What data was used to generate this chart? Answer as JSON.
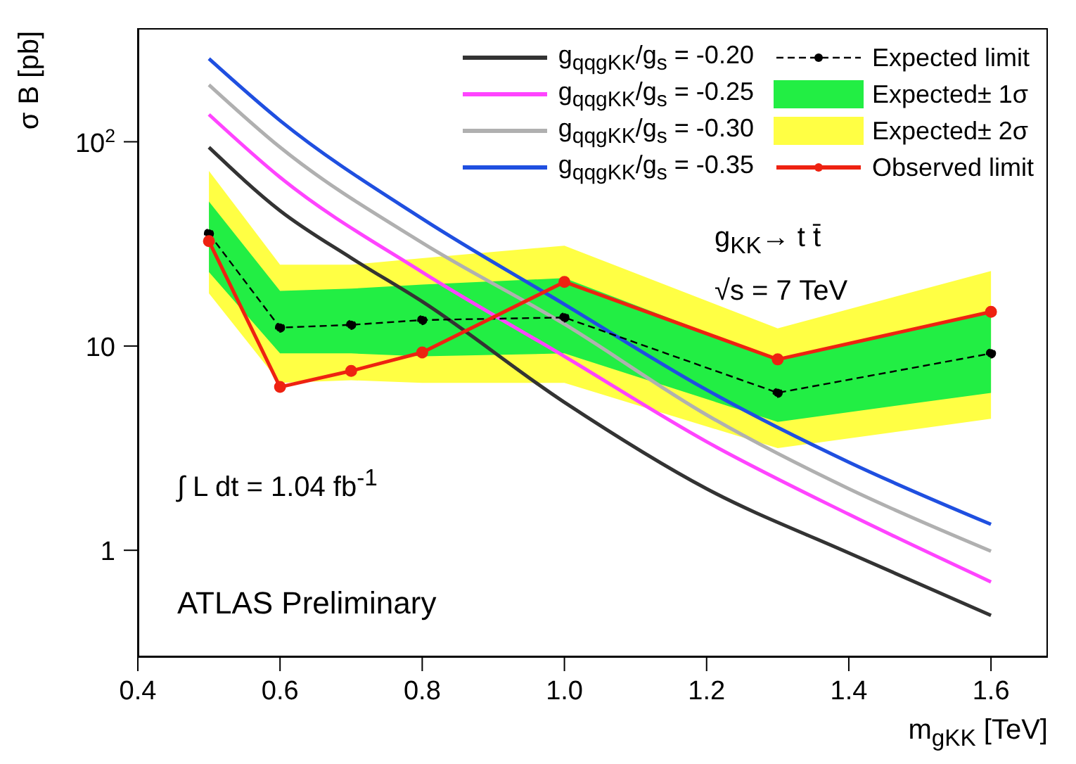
{
  "chart_data": {
    "type": "line",
    "xlabel": "m$_{gKK}$ [TeV]",
    "ylabel": "σ B [pb]",
    "log": "y",
    "xlim": [
      0.4,
      1.68
    ],
    "ylim": [
      0.3,
      360
    ],
    "xticks": [
      0.4,
      0.6,
      0.8,
      {
        "value": 1,
        "label": "1.0"
      },
      1.2,
      1.4,
      1.6
    ],
    "yticks": [
      1,
      10,
      {
        "value": 100,
        "label": "10$^{2}$"
      }
    ],
    "grid": false,
    "legend": "top right",
    "series": [
      {
        "name": "g$_{qqgKK}$/g$_{s}$ = -0.20",
        "type": "line",
        "color": "#333333",
        "marker": "none",
        "line_style": "solid",
        "x": [
          0.5,
          0.6,
          0.7,
          0.8,
          1.0,
          1.2,
          1.4,
          1.6
        ],
        "values": [
          94,
          46,
          27,
          16.5,
          5.3,
          2.0,
          0.97,
          0.48
        ]
      },
      {
        "name": "g$_{qqgKK}$/g$_{s}$ = -0.25",
        "type": "line",
        "color": "#ff44ff",
        "marker": "none",
        "line_style": "solid",
        "x": [
          0.5,
          0.6,
          0.8,
          1.0,
          1.2,
          1.4,
          1.6
        ],
        "values": [
          136,
          67,
          23,
          8.9,
          3.4,
          1.5,
          0.7
        ]
      },
      {
        "name": "g$_{qqgKK}$/g$_{s}$ = -0.30",
        "type": "line",
        "color": "#b0b0b0",
        "marker": "none",
        "line_style": "solid",
        "x": [
          0.5,
          0.6,
          0.8,
          1.0,
          1.2,
          1.4,
          1.6
        ],
        "values": [
          190,
          94,
          32,
          12.8,
          4.6,
          2.0,
          0.99
        ]
      },
      {
        "name": "g$_{qqgKK}$/g$_{s}$ = -0.35",
        "type": "line",
        "color": "#1f4fe0",
        "marker": "none",
        "line_style": "solid",
        "x": [
          0.5,
          0.6,
          0.8,
          1.0,
          1.2,
          1.4,
          1.6
        ],
        "values": [
          255,
          127,
          42,
          16,
          6.1,
          2.7,
          1.34
        ]
      },
      {
        "name": "Expected limit",
        "color": "#000000",
        "marker": "circle",
        "line_style": "dashed",
        "x": [
          0.5,
          0.6,
          0.7,
          0.8,
          1.0,
          1.3,
          1.6
        ],
        "values": [
          35.5,
          12.3,
          12.7,
          13.4,
          13.8,
          5.9,
          9.2
        ]
      },
      {
        "name": "Expected± 1σ",
        "type": "area",
        "color": "#22ee44",
        "x": [
          0.5,
          0.6,
          0.7,
          0.8,
          1.0,
          1.3,
          1.6
        ],
        "values": [
          null,
          null,
          null,
          null,
          null,
          null,
          null
        ],
        "lower": [
          23,
          9.2,
          9.2,
          8.9,
          9.2,
          4.25,
          5.9
        ],
        "upper": [
          51,
          18.6,
          19.1,
          20,
          21.5,
          8.6,
          14.9
        ]
      },
      {
        "name": "Expected± 2σ",
        "type": "area",
        "color": "#ffff44",
        "x": [
          0.5,
          0.6,
          0.7,
          0.8,
          1.0,
          1.3,
          1.6
        ],
        "values": [
          null,
          null,
          null,
          null,
          null,
          null,
          null
        ],
        "lower": [
          18.1,
          6.6,
          6.8,
          6.6,
          6.6,
          3.16,
          4.4
        ],
        "upper": [
          72,
          25,
          25,
          26.9,
          31,
          12.2,
          23.3
        ]
      },
      {
        "name": "Observed limit",
        "color": "#ee2211",
        "marker": "circle",
        "line_style": "solid",
        "x": [
          0.5,
          0.6,
          0.7,
          0.8,
          1.0,
          1.3,
          1.6
        ],
        "values": [
          32.6,
          6.3,
          7.55,
          9.3,
          20.6,
          8.6,
          14.7
        ]
      }
    ],
    "annotations": [
      "g$_{KK}$→ t t̄",
      "√s = 7 TeV",
      "∫ L dt = 1.04 fb$^{-1}$",
      "ATLAS Preliminary"
    ]
  }
}
